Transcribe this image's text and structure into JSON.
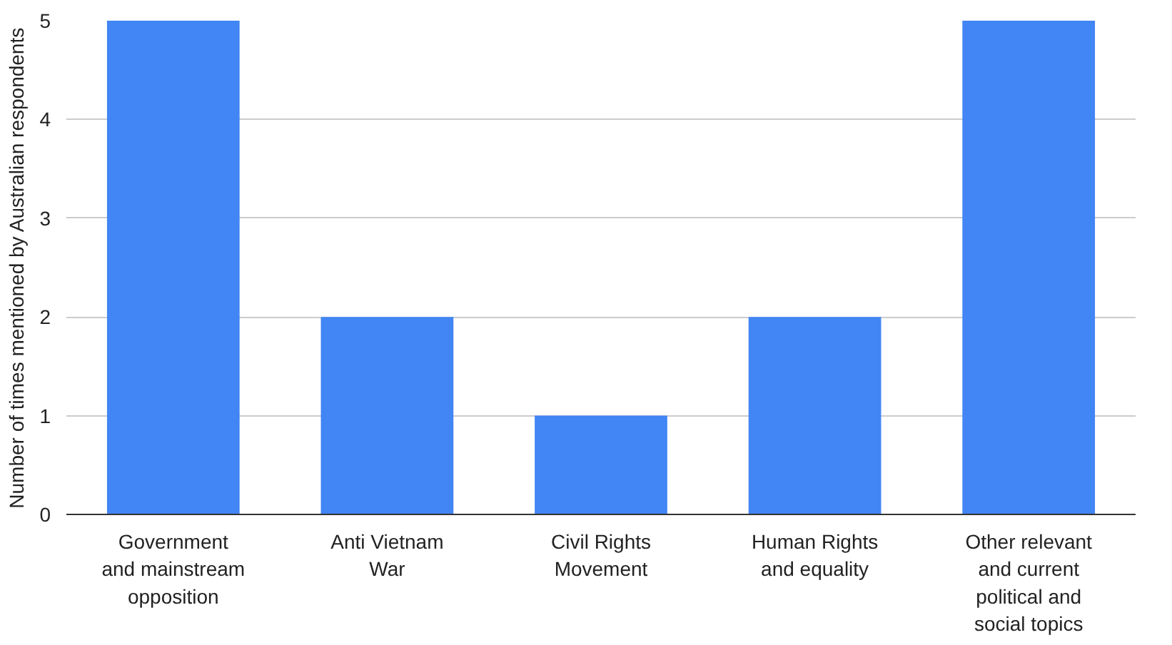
{
  "chart_data": {
    "type": "bar",
    "ylabel": "Number of times mentioned by Australian respondents",
    "categories": [
      "Government\nand mainstream\nopposition",
      "Anti Vietnam\nWar",
      "Civil Rights\nMovement",
      "Human Rights\nand equality",
      "Other relevant\nand current\npolitical and\nsocial topics"
    ],
    "values": [
      5,
      2,
      1,
      2,
      5
    ],
    "color": "#4285f4",
    "ylim": [
      0,
      5
    ],
    "yticks": [
      0,
      1,
      2,
      3,
      4,
      5
    ],
    "grid": "y"
  }
}
